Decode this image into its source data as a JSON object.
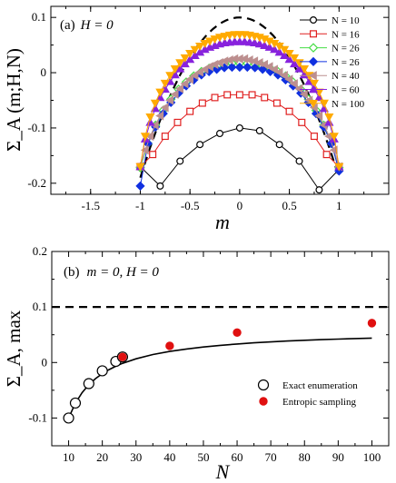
{
  "chart_data": [
    {
      "type": "line",
      "panel_label": "(a)",
      "annotation": "H = 0",
      "xlabel": "m",
      "ylabel": "Σ_A (m;H,N)",
      "xlim": [
        -1.9,
        1.5
      ],
      "ylim": [
        -0.22,
        0.12
      ],
      "x_ticks": [
        "-1.5",
        "-1",
        "-0.5",
        "0",
        "0.5",
        "1"
      ],
      "y_ticks": [
        "-0.2",
        "-0.1",
        "0",
        "0.1"
      ],
      "legend_position": "top-right",
      "envelope": {
        "style": "dashed",
        "color": "#000000",
        "max": 0.1
      },
      "series": [
        {
          "name": "N = 10",
          "color": "#000000",
          "marker": "circle-open",
          "x": [
            -1,
            -0.8,
            -0.6,
            -0.4,
            -0.2,
            0,
            0.2,
            0.4,
            0.6,
            0.8,
            1
          ],
          "y": [
            -0.17,
            -0.205,
            -0.16,
            -0.13,
            -0.11,
            -0.1,
            -0.105,
            -0.13,
            -0.16,
            -0.212,
            -0.175
          ]
        },
        {
          "name": "N = 16",
          "color": "#e02020",
          "marker": "square-open",
          "x": [
            -1,
            -0.875,
            -0.75,
            -0.625,
            -0.5,
            -0.375,
            -0.25,
            -0.125,
            0,
            0.125,
            0.25,
            0.375,
            0.5,
            0.625,
            0.75,
            0.875,
            1
          ],
          "y": [
            -0.17,
            -0.148,
            -0.115,
            -0.09,
            -0.07,
            -0.055,
            -0.045,
            -0.04,
            -0.04,
            -0.04,
            -0.045,
            -0.055,
            -0.07,
            -0.09,
            -0.115,
            -0.148,
            -0.17
          ]
        },
        {
          "name": "N = 26",
          "color": "#44dd44",
          "marker": "diamond-open",
          "x": [
            -1,
            -0.923,
            -0.846,
            -0.769,
            -0.692,
            -0.615,
            -0.538,
            -0.462,
            -0.385,
            -0.308,
            -0.231,
            -0.154,
            -0.077,
            0,
            0.077,
            0.154,
            0.231,
            0.308,
            0.385,
            0.462,
            0.538,
            0.615,
            0.692,
            0.769,
            0.846,
            0.923,
            1
          ],
          "y": [
            -0.172,
            -0.128,
            -0.095,
            -0.068,
            -0.048,
            -0.03,
            -0.017,
            -0.006,
            0.002,
            0.008,
            0.012,
            0.015,
            0.017,
            0.017,
            0.017,
            0.015,
            0.012,
            0.008,
            0.002,
            -0.006,
            -0.017,
            -0.03,
            -0.048,
            -0.068,
            -0.095,
            -0.128,
            -0.172
          ]
        },
        {
          "name": "N = 26",
          "color": "#1030e0",
          "marker": "diamond-filled",
          "x": [
            -1,
            -0.923,
            -0.846,
            -0.769,
            -0.692,
            -0.615,
            -0.538,
            -0.462,
            -0.385,
            -0.308,
            -0.231,
            -0.154,
            -0.077,
            0,
            0.077,
            0.154,
            0.231,
            0.308,
            0.385,
            0.462,
            0.538,
            0.615,
            0.692,
            0.769,
            0.846,
            0.923,
            1
          ],
          "y": [
            -0.205,
            -0.128,
            -0.098,
            -0.074,
            -0.054,
            -0.037,
            -0.024,
            -0.013,
            -0.004,
            0.002,
            0.006,
            0.009,
            0.01,
            0.01,
            0.01,
            0.009,
            0.006,
            0.002,
            -0.004,
            -0.013,
            -0.024,
            -0.037,
            -0.054,
            -0.074,
            -0.098,
            -0.128,
            -0.178
          ]
        },
        {
          "name": "N = 40",
          "color": "#bc8f8f",
          "marker": "triangle-left",
          "x": [
            -1,
            -0.95,
            -0.9,
            -0.85,
            -0.8,
            -0.75,
            -0.7,
            -0.65,
            -0.6,
            -0.55,
            -0.5,
            -0.45,
            -0.4,
            -0.35,
            -0.3,
            -0.25,
            -0.2,
            -0.15,
            -0.1,
            -0.05,
            0,
            0.05,
            0.1,
            0.15,
            0.2,
            0.25,
            0.3,
            0.35,
            0.4,
            0.45,
            0.5,
            0.55,
            0.6,
            0.65,
            0.7,
            0.75,
            0.8,
            0.85,
            0.9,
            0.95,
            1
          ],
          "y": [
            -0.17,
            -0.14,
            -0.115,
            -0.095,
            -0.078,
            -0.063,
            -0.05,
            -0.039,
            -0.029,
            -0.02,
            -0.012,
            -0.005,
            0.001,
            0.006,
            0.011,
            0.015,
            0.018,
            0.021,
            0.023,
            0.025,
            0.025,
            0.025,
            0.023,
            0.021,
            0.018,
            0.015,
            0.011,
            0.006,
            0.001,
            -0.005,
            -0.012,
            -0.02,
            -0.029,
            -0.039,
            -0.05,
            -0.063,
            -0.078,
            -0.095,
            -0.115,
            -0.14,
            -0.17
          ]
        },
        {
          "name": "N = 60",
          "color": "#8822dd",
          "marker": "triangle-up",
          "x": [
            -1,
            -0.95,
            -0.9,
            -0.85,
            -0.8,
            -0.75,
            -0.7,
            -0.65,
            -0.6,
            -0.55,
            -0.5,
            -0.45,
            -0.4,
            -0.35,
            -0.3,
            -0.25,
            -0.2,
            -0.15,
            -0.1,
            -0.05,
            0,
            0.05,
            0.1,
            0.15,
            0.2,
            0.25,
            0.3,
            0.35,
            0.4,
            0.45,
            0.5,
            0.55,
            0.6,
            0.65,
            0.7,
            0.75,
            0.8,
            0.85,
            0.9,
            0.95,
            1
          ],
          "y": [
            -0.17,
            -0.12,
            -0.09,
            -0.065,
            -0.045,
            -0.03,
            -0.016,
            -0.004,
            0.007,
            0.016,
            0.024,
            0.031,
            0.037,
            0.042,
            0.046,
            0.049,
            0.052,
            0.054,
            0.055,
            0.056,
            0.056,
            0.056,
            0.055,
            0.054,
            0.052,
            0.049,
            0.046,
            0.042,
            0.037,
            0.031,
            0.024,
            0.016,
            0.007,
            -0.004,
            -0.016,
            -0.03,
            -0.045,
            -0.065,
            -0.09,
            -0.12,
            -0.17
          ]
        },
        {
          "name": "N = 100",
          "color": "#ffaa00",
          "marker": "triangle-down",
          "x": [
            -1,
            -0.95,
            -0.9,
            -0.85,
            -0.8,
            -0.75,
            -0.7,
            -0.65,
            -0.6,
            -0.55,
            -0.5,
            -0.45,
            -0.4,
            -0.35,
            -0.3,
            -0.25,
            -0.2,
            -0.15,
            -0.1,
            -0.05,
            0,
            0.05,
            0.1,
            0.15,
            0.2,
            0.25,
            0.3,
            0.35,
            0.4,
            0.45,
            0.5,
            0.55,
            0.6,
            0.65,
            0.7,
            0.75,
            0.8,
            0.85,
            0.9,
            0.95,
            1
          ],
          "y": [
            -0.17,
            -0.115,
            -0.08,
            -0.055,
            -0.035,
            -0.019,
            -0.005,
            0.007,
            0.018,
            0.027,
            0.035,
            0.042,
            0.048,
            0.053,
            0.057,
            0.061,
            0.064,
            0.066,
            0.068,
            0.069,
            0.069,
            0.069,
            0.068,
            0.066,
            0.064,
            0.061,
            0.057,
            0.053,
            0.048,
            0.042,
            0.035,
            0.027,
            0.018,
            0.007,
            -0.005,
            -0.019,
            -0.035,
            -0.055,
            -0.08,
            -0.115,
            -0.17
          ]
        }
      ]
    },
    {
      "type": "scatter",
      "panel_label": "(b)",
      "annotation": "m = 0, H = 0",
      "xlabel": "N",
      "ylabel": "Σ_A, max",
      "xlim": [
        5,
        105
      ],
      "ylim": [
        -0.15,
        0.2
      ],
      "x_ticks": [
        "10",
        "20",
        "30",
        "40",
        "50",
        "60",
        "70",
        "80",
        "90",
        "100"
      ],
      "y_ticks": [
        "-0.1",
        "0",
        "0.1",
        "0.2"
      ],
      "legend_position": "bottom-right",
      "reference_line": {
        "y": 0.1,
        "style": "dashed"
      },
      "fit_curve": {
        "x": [
          10,
          12,
          14,
          16,
          18,
          20,
          22,
          24,
          26,
          30,
          35,
          40,
          45,
          50,
          55,
          60,
          65,
          70,
          75,
          80,
          85,
          90,
          95,
          100
        ],
        "y": [
          -0.1,
          -0.0733,
          -0.0543,
          -0.04,
          -0.0289,
          -0.02,
          -0.0127,
          -0.0067,
          -0.0015,
          0.0067,
          0.0143,
          0.02,
          0.0244,
          0.028,
          0.0309,
          0.0333,
          0.0354,
          0.0371,
          0.0387,
          0.04,
          0.0412,
          0.0422,
          0.0432,
          0.044
        ]
      },
      "series": [
        {
          "name": "Exact enumeration",
          "marker": "circle-open",
          "color": "#000000",
          "x": [
            10,
            12,
            16,
            20,
            24,
            26
          ],
          "y": [
            -0.1,
            -0.073,
            -0.038,
            -0.015,
            0.002,
            0.01
          ]
        },
        {
          "name": "Entropic sampling",
          "marker": "circle-filled",
          "color": "#e01010",
          "x": [
            26,
            40,
            60,
            100
          ],
          "y": [
            0.01,
            0.03,
            0.054,
            0.071
          ]
        }
      ]
    }
  ]
}
